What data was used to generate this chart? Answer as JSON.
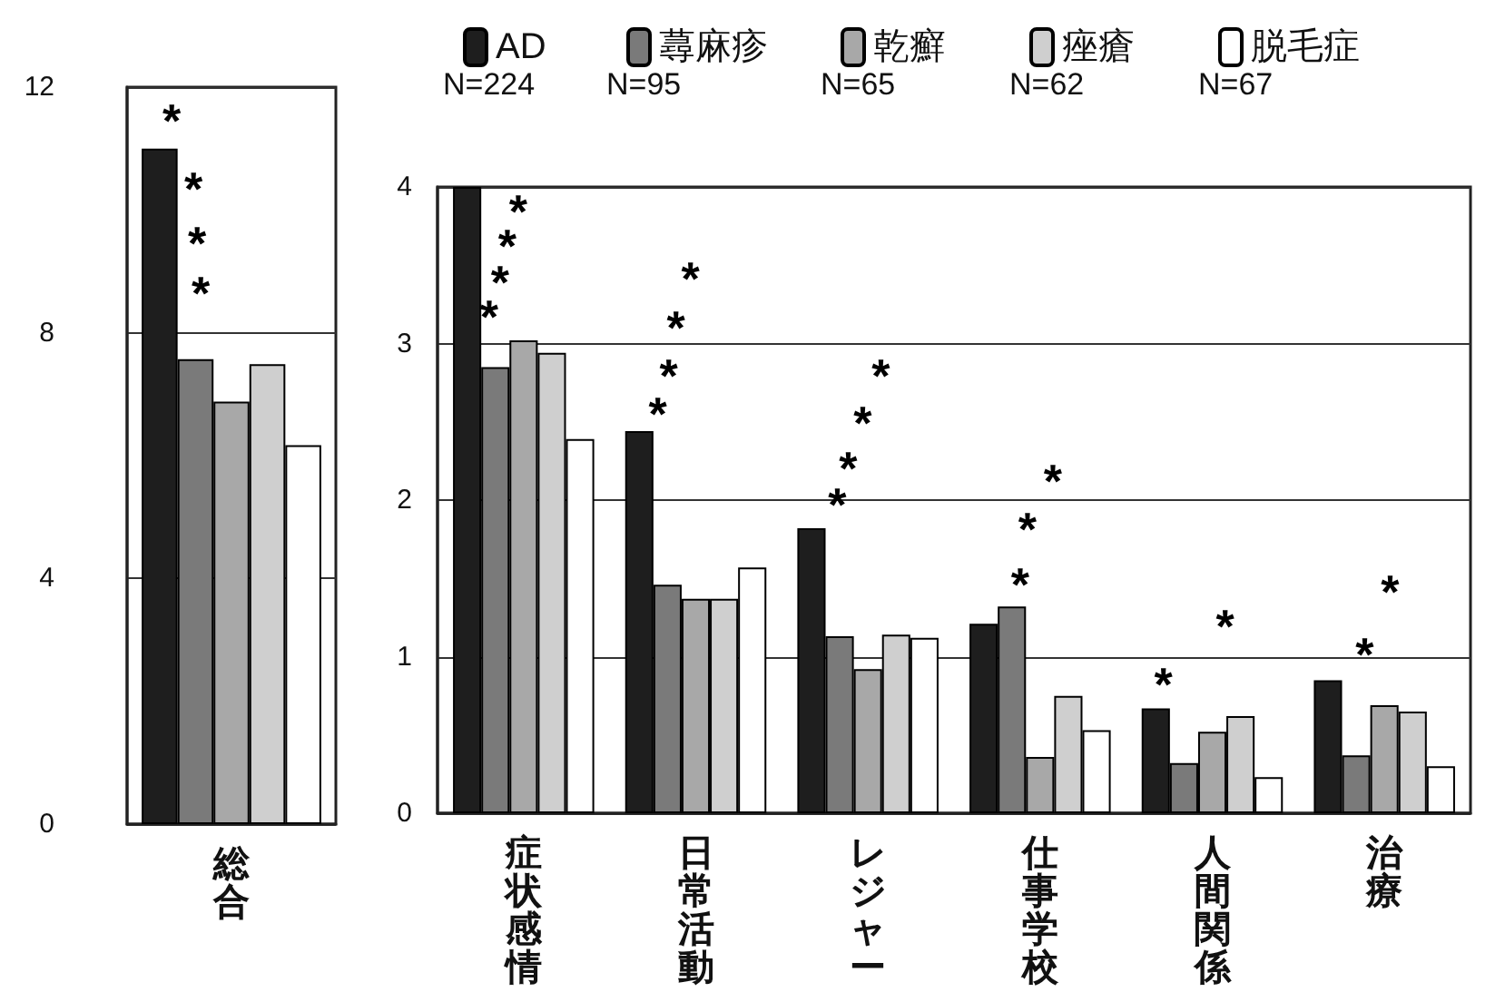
{
  "chart_data": [
    {
      "type": "bar",
      "categories": [
        "総合"
      ],
      "ylim": [
        0,
        12
      ],
      "yticks": [
        0,
        4,
        8,
        12
      ],
      "grid": "y",
      "legend": false,
      "series": [
        {
          "color": "#1e1e1e",
          "values": [
            11.0
          ]
        },
        {
          "color": "#7a7a7a",
          "values": [
            7.57
          ]
        },
        {
          "color": "#a8a8a8",
          "values": [
            6.88
          ]
        },
        {
          "color": "#cfcfcf",
          "values": [
            7.49
          ]
        },
        {
          "color": "#ffffff",
          "values": [
            6.17
          ]
        }
      ],
      "annotations": [
        "*",
        "*",
        "*",
        "*"
      ]
    },
    {
      "type": "bar",
      "categories": [
        "症状感情",
        "日常活動",
        "レジャー",
        "仕事学校",
        "人間関係",
        "治療"
      ],
      "ylim": [
        0,
        4
      ],
      "yticks": [
        0,
        1,
        2,
        3,
        4
      ],
      "grid": "y",
      "legend": "top",
      "series": [
        {
          "name": "AD",
          "color": "#1e1e1e",
          "values": [
            4.0,
            2.44,
            1.82,
            1.21,
            0.67,
            0.85
          ]
        },
        {
          "name": "蕁麻疹",
          "color": "#7a7a7a",
          "values": [
            2.85,
            1.46,
            1.13,
            1.32,
            0.32,
            0.37
          ]
        },
        {
          "name": "乾癬",
          "color": "#a8a8a8",
          "values": [
            3.02,
            1.37,
            0.92,
            0.36,
            0.52,
            0.69
          ]
        },
        {
          "name": "痤瘡",
          "color": "#cfcfcf",
          "values": [
            2.94,
            1.37,
            1.14,
            0.75,
            0.62,
            0.65
          ]
        },
        {
          "name": "脱毛症",
          "color": "#ffffff",
          "values": [
            2.39,
            1.57,
            1.12,
            0.53,
            0.23,
            0.3
          ]
        }
      ],
      "annotations": [
        "N=224",
        "N=95",
        "N=65",
        "N=62",
        "N=67",
        "*",
        "*",
        "*",
        "*",
        "*",
        "*",
        "*",
        "*",
        "*",
        "*",
        "*",
        "*",
        "*",
        "*",
        "*",
        "*",
        "*",
        "*",
        "*"
      ]
    }
  ]
}
